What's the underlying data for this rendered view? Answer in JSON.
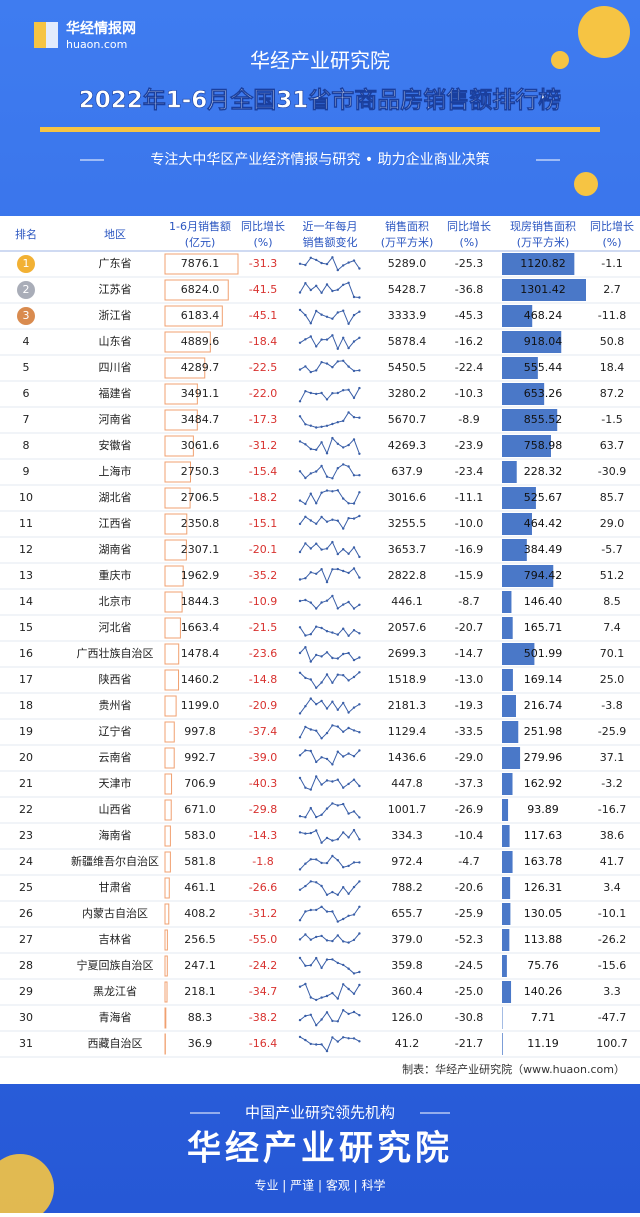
{
  "header": {
    "logo": "华经情报网",
    "logo_sub": "huaon.com",
    "org": "华经产业研究院",
    "title": "2022年1-6月全国31省市商品房销售额排行榜",
    "slogan": "专注大中华区产业经济情报与研究 • 助力企业商业决策"
  },
  "table": {
    "columns": [
      [
        "排名"
      ],
      [
        "地区"
      ],
      [
        "1-6月销售额",
        "(亿元)"
      ],
      [
        "同比增长",
        "(%)"
      ],
      [
        "近一年每月",
        "销售额变化"
      ],
      [
        "销售面积",
        "(万平方米)"
      ],
      [
        "同比增长",
        "(%)"
      ],
      [
        "现房销售面积",
        "(万平方米)"
      ],
      [
        "同比增长",
        "(%)"
      ]
    ],
    "rows": [
      [
        "1",
        "广东省",
        "7876.1",
        "-31.3",
        "5289.0",
        "-25.3",
        "1120.82",
        "-1.1"
      ],
      [
        "2",
        "江苏省",
        "6824.0",
        "-41.5",
        "5428.7",
        "-36.8",
        "1301.42",
        "2.7"
      ],
      [
        "3",
        "浙江省",
        "6183.4",
        "-45.1",
        "3333.9",
        "-45.3",
        "468.24",
        "-11.8"
      ],
      [
        "4",
        "山东省",
        "4889.6",
        "-18.4",
        "5878.4",
        "-16.2",
        "918.04",
        "50.8"
      ],
      [
        "5",
        "四川省",
        "4289.7",
        "-22.5",
        "5450.5",
        "-22.4",
        "555.44",
        "18.4"
      ],
      [
        "6",
        "福建省",
        "3491.1",
        "-22.0",
        "3280.2",
        "-10.3",
        "653.26",
        "87.2"
      ],
      [
        "7",
        "河南省",
        "3484.7",
        "-17.3",
        "5670.7",
        "-8.9",
        "855.52",
        "-1.5"
      ],
      [
        "8",
        "安徽省",
        "3061.6",
        "-31.2",
        "4269.3",
        "-23.9",
        "758.98",
        "63.7"
      ],
      [
        "9",
        "上海市",
        "2750.3",
        "-15.4",
        "637.9",
        "-23.4",
        "228.32",
        "-30.9"
      ],
      [
        "10",
        "湖北省",
        "2706.5",
        "-18.2",
        "3016.6",
        "-11.1",
        "525.67",
        "85.7"
      ],
      [
        "11",
        "江西省",
        "2350.8",
        "-15.1",
        "3255.5",
        "-10.0",
        "464.42",
        "29.0"
      ],
      [
        "12",
        "湖南省",
        "2307.1",
        "-20.1",
        "3653.7",
        "-16.9",
        "384.49",
        "-5.7"
      ],
      [
        "13",
        "重庆市",
        "1962.9",
        "-35.2",
        "2822.8",
        "-15.9",
        "794.42",
        "51.2"
      ],
      [
        "14",
        "北京市",
        "1844.3",
        "-10.9",
        "446.1",
        "-8.7",
        "146.40",
        "8.5"
      ],
      [
        "15",
        "河北省",
        "1663.4",
        "-21.5",
        "2057.6",
        "-20.7",
        "165.71",
        "7.4"
      ],
      [
        "16",
        "广西壮族自治区",
        "1478.4",
        "-23.6",
        "2699.3",
        "-14.7",
        "501.99",
        "70.1"
      ],
      [
        "17",
        "陕西省",
        "1460.2",
        "-14.8",
        "1518.9",
        "-13.0",
        "169.14",
        "25.0"
      ],
      [
        "18",
        "贵州省",
        "1199.0",
        "-20.9",
        "2181.3",
        "-19.3",
        "216.74",
        "-3.8"
      ],
      [
        "19",
        "辽宁省",
        "997.8",
        "-37.4",
        "1129.4",
        "-33.5",
        "251.98",
        "-25.9"
      ],
      [
        "20",
        "云南省",
        "992.7",
        "-39.0",
        "1436.6",
        "-29.0",
        "279.96",
        "37.1"
      ],
      [
        "21",
        "天津市",
        "706.9",
        "-40.3",
        "447.8",
        "-37.3",
        "162.92",
        "-3.2"
      ],
      [
        "22",
        "山西省",
        "671.0",
        "-29.8",
        "1001.7",
        "-26.9",
        "93.89",
        "-16.7"
      ],
      [
        "23",
        "海南省",
        "583.0",
        "-14.3",
        "334.3",
        "-10.4",
        "117.63",
        "38.6"
      ],
      [
        "24",
        "新疆维吾尔自治区",
        "581.8",
        "-1.8",
        "972.4",
        "-4.7",
        "163.78",
        "41.7"
      ],
      [
        "25",
        "甘肃省",
        "461.1",
        "-26.6",
        "788.2",
        "-20.6",
        "126.31",
        "3.4"
      ],
      [
        "26",
        "内蒙古自治区",
        "408.2",
        "-31.2",
        "655.7",
        "-25.9",
        "130.05",
        "-10.1"
      ],
      [
        "27",
        "吉林省",
        "256.5",
        "-55.0",
        "379.0",
        "-52.3",
        "113.88",
        "-26.2"
      ],
      [
        "28",
        "宁夏回族自治区",
        "247.1",
        "-24.2",
        "359.8",
        "-24.5",
        "75.76",
        "-15.6"
      ],
      [
        "29",
        "黑龙江省",
        "218.1",
        "-34.7",
        "360.4",
        "-25.0",
        "140.26",
        "3.3"
      ],
      [
        "30",
        "青海省",
        "88.3",
        "-38.2",
        "126.0",
        "-30.8",
        "7.71",
        "-47.7"
      ],
      [
        "31",
        "西藏自治区",
        "36.9",
        "-16.4",
        "41.2",
        "-21.7",
        "11.19",
        "100.7"
      ]
    ]
  },
  "source": "制表：华经产业研究院（www.huaon.com）",
  "footer": {
    "tagline": "中国产业研究领先机构",
    "org": "华经产业研究院",
    "values": "专业 | 严谨 | 客观 | 科学"
  }
}
